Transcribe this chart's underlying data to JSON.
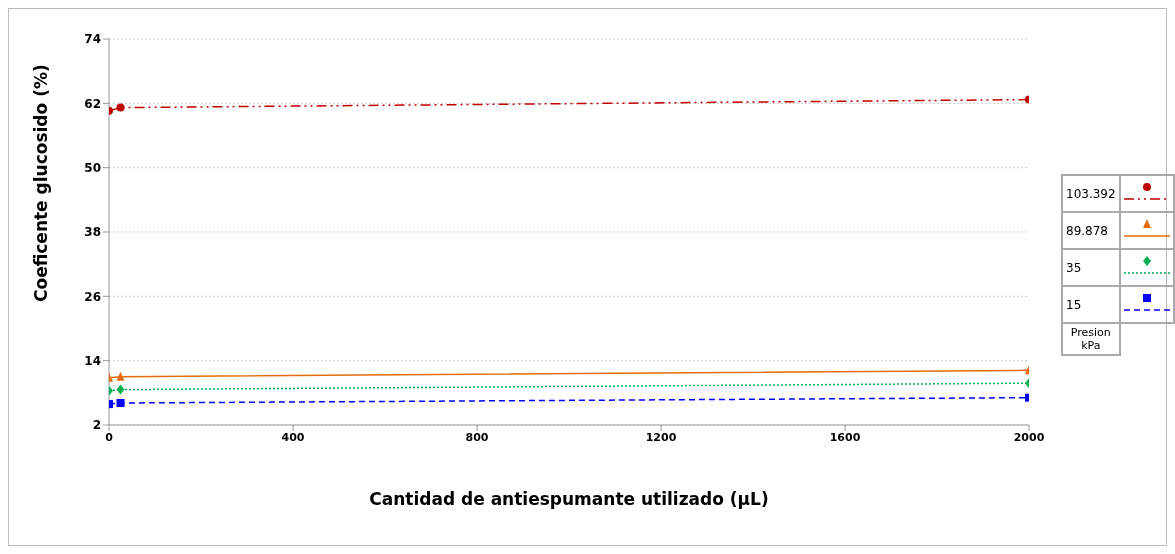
{
  "chart_data": {
    "type": "line",
    "xlabel": "Cantidad de antiespumante utilizado (µL)",
    "ylabel": "Coeficente glucosido (%)",
    "legend_title": "Presion kPa",
    "x": [
      0,
      25,
      2000
    ],
    "series": [
      {
        "name": "103.392",
        "color": "#c00000",
        "values": [
          60.6,
          61.2,
          62.7
        ],
        "marker": "circle",
        "line_style": "dashdot"
      },
      {
        "name": "89.878",
        "color": "#e46c0a",
        "values": [
          10.8,
          11.0,
          12.2
        ],
        "marker": "triangle",
        "line_style": "solid"
      },
      {
        "name": "35",
        "color": "#00b050",
        "values": [
          8.4,
          8.6,
          9.8
        ],
        "marker": "diamond",
        "line_style": "dotted"
      },
      {
        "name": "15",
        "color": "#0000ff",
        "values": [
          5.9,
          6.1,
          7.1
        ],
        "marker": "square",
        "line_style": "dashed"
      }
    ],
    "xlim": [
      0,
      2000
    ],
    "xticks": [
      0,
      400,
      800,
      1200,
      1600,
      2000
    ],
    "ylim": [
      2,
      74
    ],
    "yticks": [
      2,
      14,
      26,
      38,
      50,
      62,
      74
    ],
    "grid": "y",
    "legend": "right"
  }
}
